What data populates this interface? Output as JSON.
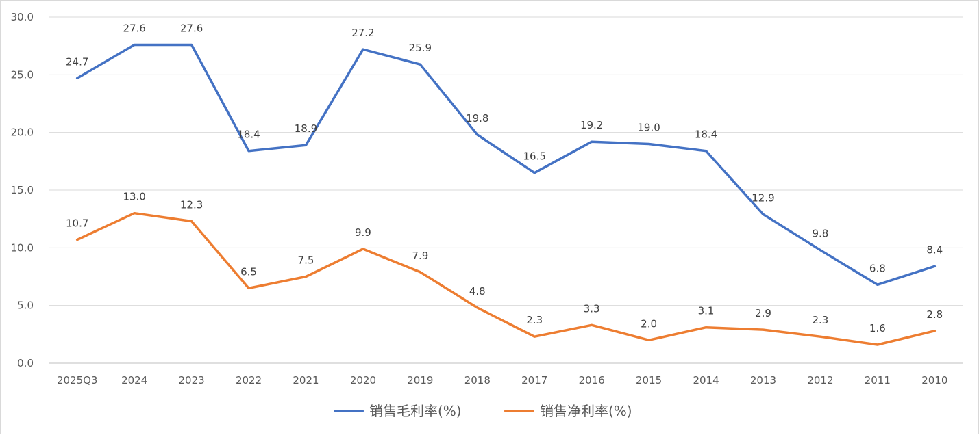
{
  "chart_data": {
    "type": "line",
    "title": "",
    "xlabel": "",
    "ylabel": "",
    "categories": [
      "2025Q3",
      "2024",
      "2023",
      "2022",
      "2021",
      "2020",
      "2019",
      "2018",
      "2017",
      "2016",
      "2015",
      "2014",
      "2013",
      "2012",
      "2011",
      "2010"
    ],
    "ylim": [
      0,
      30
    ],
    "yticks": [
      "0.0",
      "5.0",
      "10.0",
      "15.0",
      "20.0",
      "25.0",
      "30.0"
    ],
    "grid": true,
    "legend_position": "bottom",
    "series": [
      {
        "name": "销售毛利率(%)",
        "color": "#4472C4",
        "values": [
          24.7,
          27.6,
          27.6,
          18.4,
          18.9,
          27.2,
          25.9,
          19.8,
          16.5,
          19.2,
          19.0,
          18.4,
          12.9,
          9.8,
          6.8,
          8.4
        ],
        "labels": [
          "24.7",
          "27.6",
          "27.6",
          "18.4",
          "18.9",
          "27.2",
          "25.9",
          "19.8",
          "16.5",
          "19.2",
          "19.0",
          "18.4",
          "12.9",
          "9.8",
          "6.8",
          "8.4"
        ]
      },
      {
        "name": "销售净利率(%)",
        "color": "#ED7D31",
        "values": [
          10.7,
          13.0,
          12.3,
          6.5,
          7.5,
          9.9,
          7.9,
          4.8,
          2.3,
          3.3,
          2.0,
          3.1,
          2.9,
          2.3,
          1.6,
          2.8
        ],
        "labels": [
          "10.7",
          "13.0",
          "12.3",
          "6.5",
          "7.5",
          "9.9",
          "7.9",
          "4.8",
          "2.3",
          "3.3",
          "2.0",
          "3.1",
          "2.9",
          "2.3",
          "1.6",
          "2.8"
        ]
      }
    ]
  }
}
